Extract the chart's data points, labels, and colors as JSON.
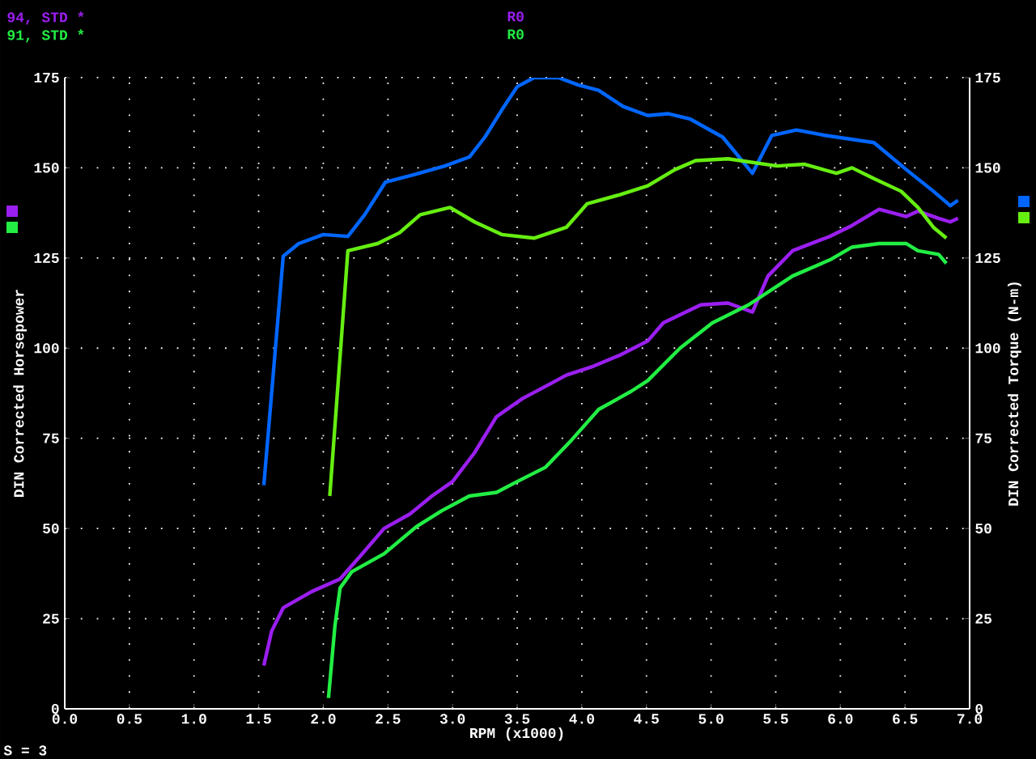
{
  "chart_data": {
    "type": "line",
    "xlabel": "RPM (x1000)",
    "ylabel": "DIN Corrected Horsepower",
    "y2label": "DIN Corrected Torque (N-m)",
    "xlim": [
      0,
      7
    ],
    "xticks": [
      {
        "value": 0,
        "label": "0.0"
      },
      {
        "value": 0.5,
        "label": "0.5"
      },
      {
        "value": 1,
        "label": "1.0"
      },
      {
        "value": 1.5,
        "label": "1.5"
      },
      {
        "value": 2,
        "label": "2.0"
      },
      {
        "value": 2.5,
        "label": "2.5"
      },
      {
        "value": 3,
        "label": "3.0"
      },
      {
        "value": 3.5,
        "label": "3.5"
      },
      {
        "value": 4,
        "label": "4.0"
      },
      {
        "value": 4.5,
        "label": "4.5"
      },
      {
        "value": 5,
        "label": "5.0"
      },
      {
        "value": 5.5,
        "label": "5.5"
      },
      {
        "value": 6,
        "label": "6.0"
      },
      {
        "value": 6.5,
        "label": "6.5"
      },
      {
        "value": 7,
        "label": "7.0"
      }
    ],
    "ylim": [
      0,
      175
    ],
    "yticks": [
      0,
      25,
      50,
      75,
      100,
      125,
      150,
      175
    ],
    "y2lim": [
      0,
      175
    ],
    "y2ticks": [
      0,
      25,
      50,
      75,
      100,
      125,
      150,
      175
    ],
    "grid": true,
    "legend": "top left",
    "annotations": [
      "R0",
      "R0",
      "S = 3"
    ],
    "series": [
      {
        "name": "94, STD *",
        "color": "#9b1ff0",
        "axis": "y",
        "x": [
          1.54,
          1.6,
          1.69,
          1.91,
          2.13,
          2.29,
          2.47,
          2.67,
          2.84,
          3.0,
          3.17,
          3.34,
          3.54,
          3.75,
          3.88,
          4.09,
          4.29,
          4.51,
          4.63,
          4.92,
          5.13,
          5.32,
          5.44,
          5.63,
          5.92,
          6.09,
          6.3,
          6.51,
          6.6,
          6.76,
          6.85,
          6.91
        ],
        "values": [
          12,
          21.5,
          28,
          32.5,
          36,
          42.5,
          50,
          54,
          59,
          63,
          71,
          81,
          86,
          90,
          92.5,
          95,
          98,
          102,
          107,
          112,
          112.5,
          110,
          120,
          127,
          131,
          134,
          138.5,
          136.5,
          138,
          136,
          135,
          136
        ]
      },
      {
        "name": "91, STD *",
        "color": "#22ee44",
        "axis": "y",
        "x": [
          2.04,
          2.09,
          2.13,
          2.22,
          2.47,
          2.72,
          2.92,
          3.13,
          3.34,
          3.5,
          3.72,
          3.92,
          4.13,
          4.38,
          4.51,
          4.76,
          5.01,
          5.29,
          5.63,
          5.92,
          6.09,
          6.3,
          6.51,
          6.6,
          6.76,
          6.82
        ],
        "values": [
          3,
          23,
          33.5,
          38,
          43,
          50.5,
          55,
          59,
          60,
          63,
          67,
          74.5,
          83,
          88,
          91,
          100,
          107,
          112,
          120,
          124.5,
          128,
          129,
          129,
          127,
          126,
          123.5
        ]
      },
      {
        "color": "#0066ff",
        "axis": "y2",
        "x": [
          1.54,
          1.69,
          1.81,
          2.0,
          2.19,
          2.32,
          2.48,
          2.69,
          2.94,
          3.13,
          3.25,
          3.38,
          3.5,
          3.63,
          3.82,
          3.97,
          4.13,
          4.32,
          4.51,
          4.67,
          4.84,
          5.09,
          5.32,
          5.47,
          5.66,
          5.88,
          6.26,
          6.51,
          6.72,
          6.85,
          6.91
        ],
        "values": [
          62,
          125.5,
          129,
          131.5,
          131,
          137,
          146,
          148,
          150.5,
          153,
          158.5,
          166,
          172.5,
          175,
          175,
          173,
          171.5,
          167,
          164.5,
          165,
          163.5,
          158.5,
          148.5,
          159,
          160.5,
          159,
          157,
          149.5,
          143.5,
          139.5,
          141
        ]
      },
      {
        "color": "#66ee11",
        "axis": "y2",
        "x": [
          2.05,
          2.19,
          2.42,
          2.59,
          2.75,
          2.98,
          3.17,
          3.38,
          3.63,
          3.88,
          4.04,
          4.29,
          4.51,
          4.72,
          4.88,
          5.13,
          5.51,
          5.72,
          5.97,
          6.09,
          6.26,
          6.47,
          6.6,
          6.72,
          6.82
        ],
        "values": [
          59,
          127,
          129,
          132,
          137,
          139,
          135,
          131.5,
          130.5,
          133.5,
          140,
          142.5,
          145,
          149.5,
          152,
          152.5,
          150.5,
          151,
          148.5,
          150,
          147,
          143.5,
          139,
          133.5,
          130.5
        ]
      }
    ]
  }
}
